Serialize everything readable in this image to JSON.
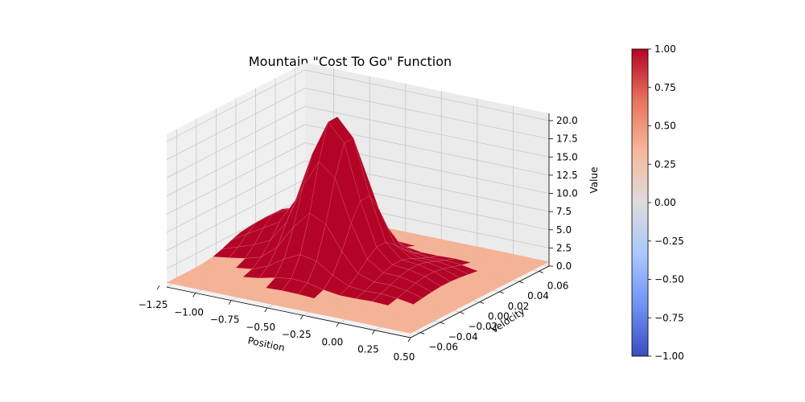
{
  "chart_data": {
    "type": "surface3d",
    "title": "Mountain \"Cost To Go\" Function",
    "xlabel": "Position",
    "ylabel": "Velocity",
    "zlabel": "Value",
    "xlim": [
      -1.2,
      0.5
    ],
    "ylim": [
      -0.07,
      0.07
    ],
    "zlim": [
      0,
      21
    ],
    "x_ticks": [
      "−1.25",
      "−1.00",
      "−0.75",
      "−0.50",
      "−0.25",
      "0.00",
      "0.25",
      "0.50"
    ],
    "y_ticks": [
      "−0.06",
      "−0.04",
      "−0.02",
      "0.00",
      "0.02",
      "0.04",
      "0.06"
    ],
    "z_ticks": [
      "0.0",
      "2.5",
      "5.0",
      "7.5",
      "10.0",
      "12.5",
      "15.0",
      "17.5",
      "20.0"
    ],
    "grid": true,
    "surface_color": "#b40426",
    "surface_edge_color": "#e8a0a8",
    "low_value_color": "#f5b396",
    "peak": {
      "position": -0.5,
      "velocity": 0.0,
      "value": 21
    },
    "surface_grid": {
      "positions": [
        -1.2,
        -1.0875,
        -0.975,
        -0.8625,
        -0.75,
        -0.6375,
        -0.525,
        -0.4125,
        -0.3,
        -0.1875,
        -0.075,
        0.0375,
        0.15,
        0.2625,
        0.375,
        0.5
      ],
      "velocities": [
        -0.07,
        -0.0607,
        -0.0513,
        -0.042,
        -0.0327,
        -0.0233,
        -0.014,
        -0.0047,
        0.0047,
        0.014,
        0.0233,
        0.0327,
        0.042,
        0.0513,
        0.0607,
        0.07
      ]
    },
    "colorbar": {
      "colormap": "coolwarm",
      "range": [
        -1.0,
        1.0
      ],
      "ticks": [
        "1.00",
        "0.75",
        "0.50",
        "0.25",
        "0.00",
        "−0.25",
        "−0.50",
        "−0.75",
        "−1.00"
      ],
      "colors": [
        "#3b4cc0",
        "#6f92f3",
        "#aac7fd",
        "#dddcdc",
        "#f7b89c",
        "#e7745b",
        "#b40426"
      ]
    }
  }
}
